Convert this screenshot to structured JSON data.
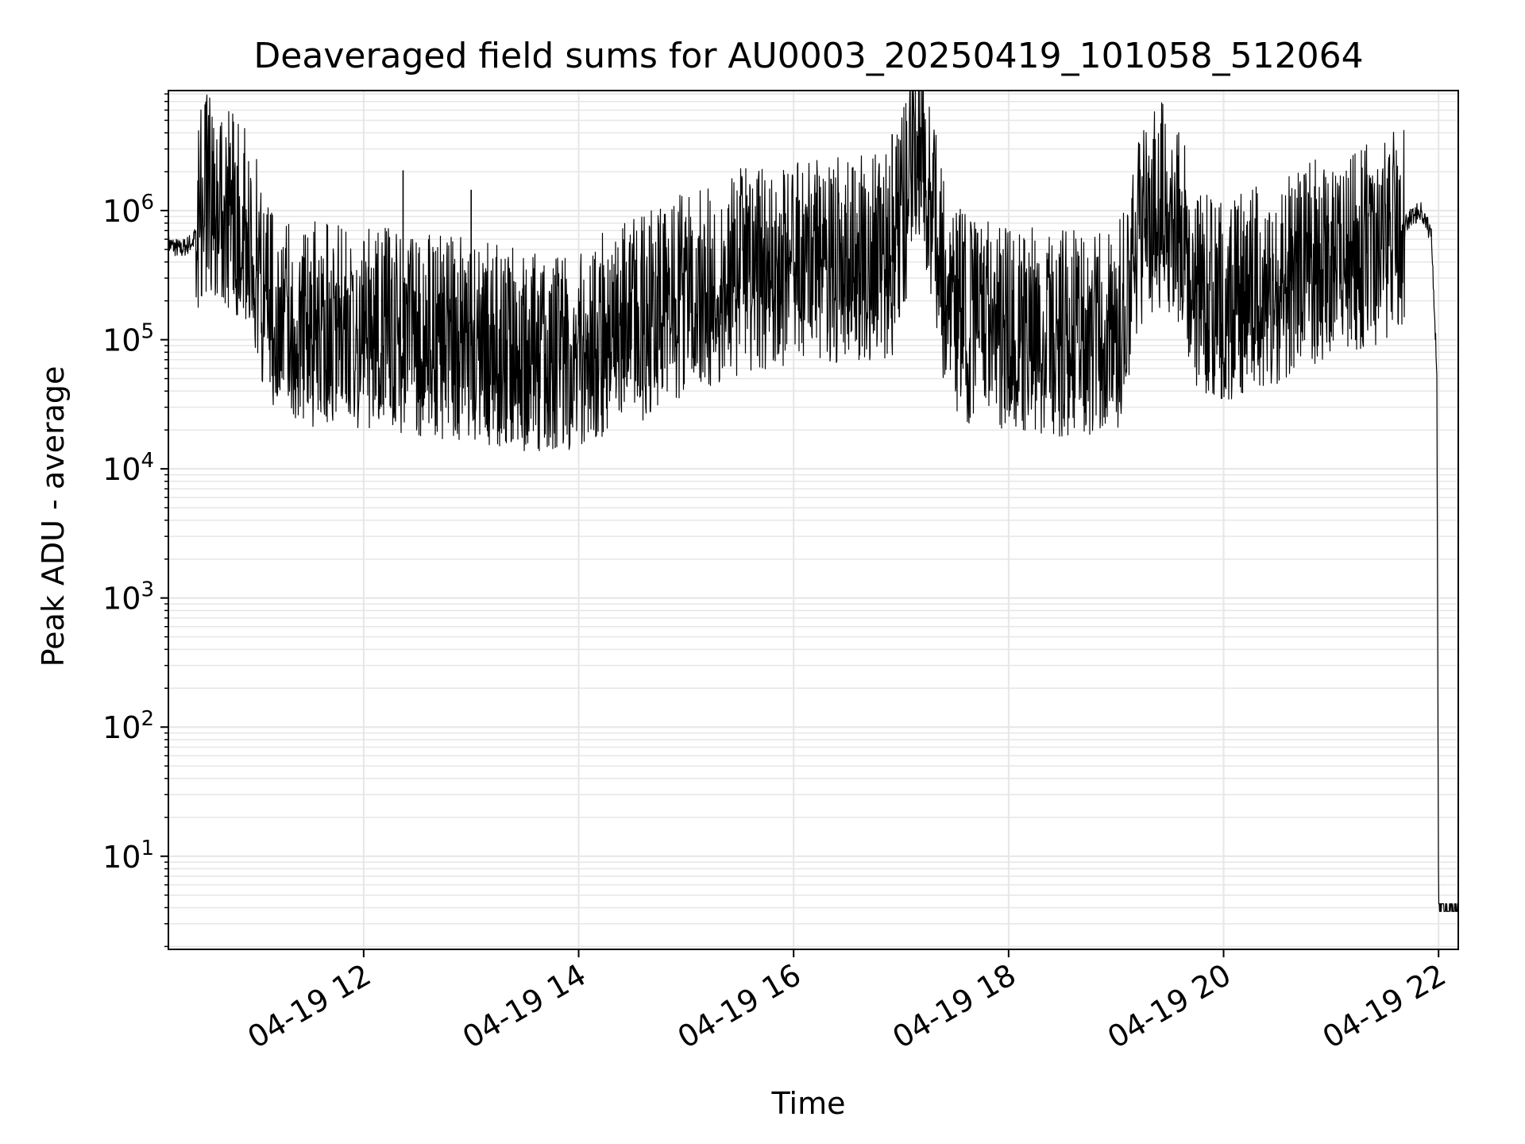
{
  "chart_data": {
    "type": "line",
    "title": "Deaveraged field sums for AU0003_20250419_101058_512064",
    "xlabel": "Time",
    "ylabel": "Peak ADU - average",
    "xscale": "time",
    "yscale": "log",
    "xlim": [
      "2025-04-19 10:11",
      "2025-04-19 22:11"
    ],
    "ylim": [
      1.9,
      8500000
    ],
    "grid": true,
    "line_color": "#000000",
    "grid_color": "#e6e6e6",
    "x_ticks": [
      {
        "value": "2025-04-19 12:00",
        "label": "04-19 12"
      },
      {
        "value": "2025-04-19 14:00",
        "label": "04-19 14"
      },
      {
        "value": "2025-04-19 16:00",
        "label": "04-19 16"
      },
      {
        "value": "2025-04-19 18:00",
        "label": "04-19 18"
      },
      {
        "value": "2025-04-19 20:00",
        "label": "04-19 20"
      },
      {
        "value": "2025-04-19 22:00",
        "label": "04-19 22"
      }
    ],
    "y_ticks": [
      {
        "value": 10,
        "base": "10",
        "exp": "1"
      },
      {
        "value": 100,
        "base": "10",
        "exp": "2"
      },
      {
        "value": 1000,
        "base": "10",
        "exp": "3"
      },
      {
        "value": 10000,
        "base": "10",
        "exp": "4"
      },
      {
        "value": 100000,
        "base": "10",
        "exp": "5"
      },
      {
        "value": 1000000,
        "base": "10",
        "exp": "6"
      }
    ],
    "series": [
      {
        "points": [
          [
            "2025-04-19 10:11",
            550000
          ],
          [
            "2025-04-19 10:18",
            500000
          ],
          [
            "2025-04-19 10:25",
            580000
          ],
          [
            "2025-04-19 10:30",
            1100000
          ],
          [
            "2025-04-19 10:36",
            1300000
          ],
          [
            "2025-04-19 10:42",
            1000000
          ],
          [
            "2025-04-19 10:48",
            900000
          ],
          [
            "2025-04-19 10:54",
            700000
          ],
          [
            "2025-04-19 11:00",
            400000
          ],
          [
            "2025-04-19 11:06",
            180000
          ],
          [
            "2025-04-19 11:15",
            150000
          ],
          [
            "2025-04-19 11:30",
            120000
          ],
          [
            "2025-04-19 12:00",
            110000
          ],
          [
            "2025-04-19 12:30",
            100000
          ],
          [
            "2025-04-19 13:00",
            90000
          ],
          [
            "2025-04-19 13:30",
            75000
          ],
          [
            "2025-04-19 13:45",
            70000
          ],
          [
            "2025-04-19 14:00",
            80000
          ],
          [
            "2025-04-19 14:30",
            120000
          ],
          [
            "2025-04-19 15:00",
            200000
          ],
          [
            "2025-04-19 15:30",
            300000
          ],
          [
            "2025-04-19 16:00",
            350000
          ],
          [
            "2025-04-19 16:30",
            380000
          ],
          [
            "2025-04-19 16:55",
            400000
          ],
          [
            "2025-04-19 17:05",
            1500000
          ],
          [
            "2025-04-19 17:10",
            2500000
          ],
          [
            "2025-04-19 17:16",
            1300000
          ],
          [
            "2025-04-19 17:25",
            180000
          ],
          [
            "2025-04-19 17:40",
            120000
          ],
          [
            "2025-04-19 18:00",
            110000
          ],
          [
            "2025-04-19 18:30",
            100000
          ],
          [
            "2025-04-19 19:00",
            95000
          ],
          [
            "2025-04-19 19:15",
            800000
          ],
          [
            "2025-04-19 19:25",
            1000000
          ],
          [
            "2025-04-19 19:35",
            700000
          ],
          [
            "2025-04-19 19:45",
            200000
          ],
          [
            "2025-04-19 20:00",
            180000
          ],
          [
            "2025-04-19 20:30",
            250000
          ],
          [
            "2025-04-19 21:00",
            400000
          ],
          [
            "2025-04-19 21:30",
            500000
          ],
          [
            "2025-04-19 21:45",
            900000
          ],
          [
            "2025-04-19 21:50",
            1000000
          ],
          [
            "2025-04-19 21:56",
            650000
          ],
          [
            "2025-04-19 21:59",
            60000
          ],
          [
            "2025-04-19 22:00",
            4
          ],
          [
            "2025-04-19 22:11",
            4
          ]
        ],
        "spikes": [
          [
            "2025-04-19 10:48",
            1850000
          ],
          [
            "2025-04-19 12:22",
            2050000
          ],
          [
            "2025-04-19 13:00",
            1450000
          ],
          [
            "2025-04-19 15:30",
            1300000
          ],
          [
            "2025-04-19 16:55",
            3900000
          ],
          [
            "2025-04-19 17:13",
            4000000
          ],
          [
            "2025-04-19 19:13",
            3300000
          ],
          [
            "2025-04-19 20:45",
            1900000
          ],
          [
            "2025-04-19 21:20",
            1900000
          ]
        ]
      }
    ]
  }
}
